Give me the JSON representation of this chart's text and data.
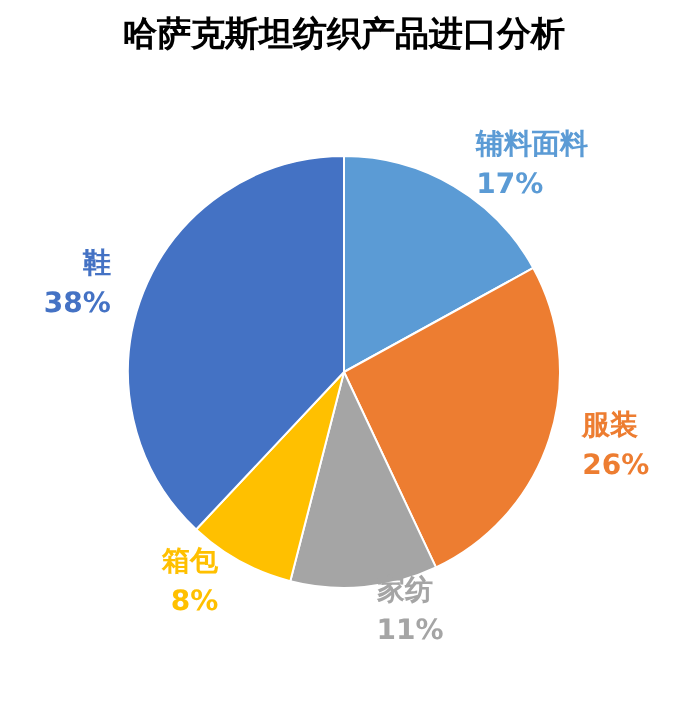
{
  "chart_data": {
    "type": "pie",
    "title": "哈萨克斯坦纺织产品进口分析",
    "categories": [
      "辅料面料",
      "服装",
      "家纺",
      "箱包",
      "鞋"
    ],
    "values": [
      17,
      26,
      11,
      8,
      38
    ],
    "value_labels": [
      "17%",
      "26%",
      "11%",
      "8%",
      "38%"
    ],
    "colors": [
      "#5b9bd5",
      "#ed7d31",
      "#a5a5a5",
      "#ffc000",
      "#4472c4"
    ],
    "legend": false
  }
}
